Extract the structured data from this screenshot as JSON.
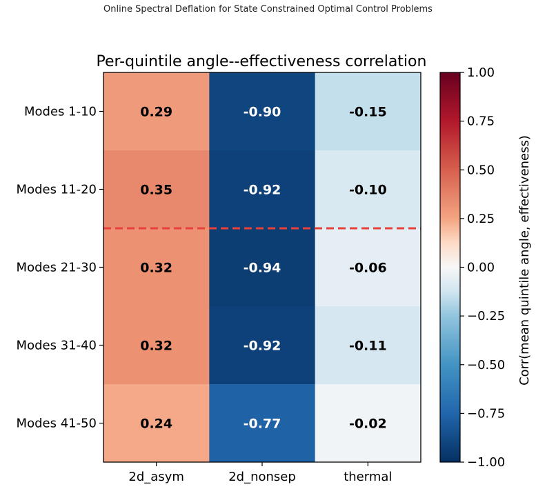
{
  "page_header": "Online Spectral Deflation for State Constrained Optimal Control Problems",
  "chart_data": {
    "type": "heatmap",
    "title": "Per-quintile angle--effectiveness correlation",
    "rows": [
      "Modes 1-10",
      "Modes 11-20",
      "Modes 21-30",
      "Modes 31-40",
      "Modes 41-50"
    ],
    "columns": [
      "2d_asym",
      "2d_nonsep",
      "thermal"
    ],
    "values": [
      [
        0.29,
        -0.9,
        -0.15
      ],
      [
        0.35,
        -0.92,
        -0.1
      ],
      [
        0.32,
        -0.94,
        -0.06
      ],
      [
        0.32,
        -0.92,
        -0.11
      ],
      [
        0.24,
        -0.77,
        -0.02
      ]
    ],
    "value_labels": [
      [
        "0.29",
        "-0.90",
        "-0.15"
      ],
      [
        "0.35",
        "-0.92",
        "-0.10"
      ],
      [
        "0.32",
        "-0.94",
        "-0.06"
      ],
      [
        "0.32",
        "-0.92",
        "-0.11"
      ],
      [
        "0.24",
        "-0.77",
        "-0.02"
      ]
    ],
    "colormap": "RdBu_r",
    "vmin": -1.0,
    "vmax": 1.0,
    "colorbar": {
      "label": "Corr(mean quintile angle, effectiveness)",
      "ticks": [
        1.0,
        0.75,
        0.5,
        0.25,
        0.0,
        -0.25,
        -0.5,
        -0.75,
        -1.0
      ],
      "tick_labels": [
        "1.00",
        "0.75",
        "0.50",
        "0.25",
        "0.00",
        "−0.25",
        "−0.50",
        "−0.75",
        "−1.00"
      ]
    },
    "separator_line": {
      "after_row": 2,
      "style": "dashed",
      "color": "#e8403a"
    },
    "grid": false
  }
}
